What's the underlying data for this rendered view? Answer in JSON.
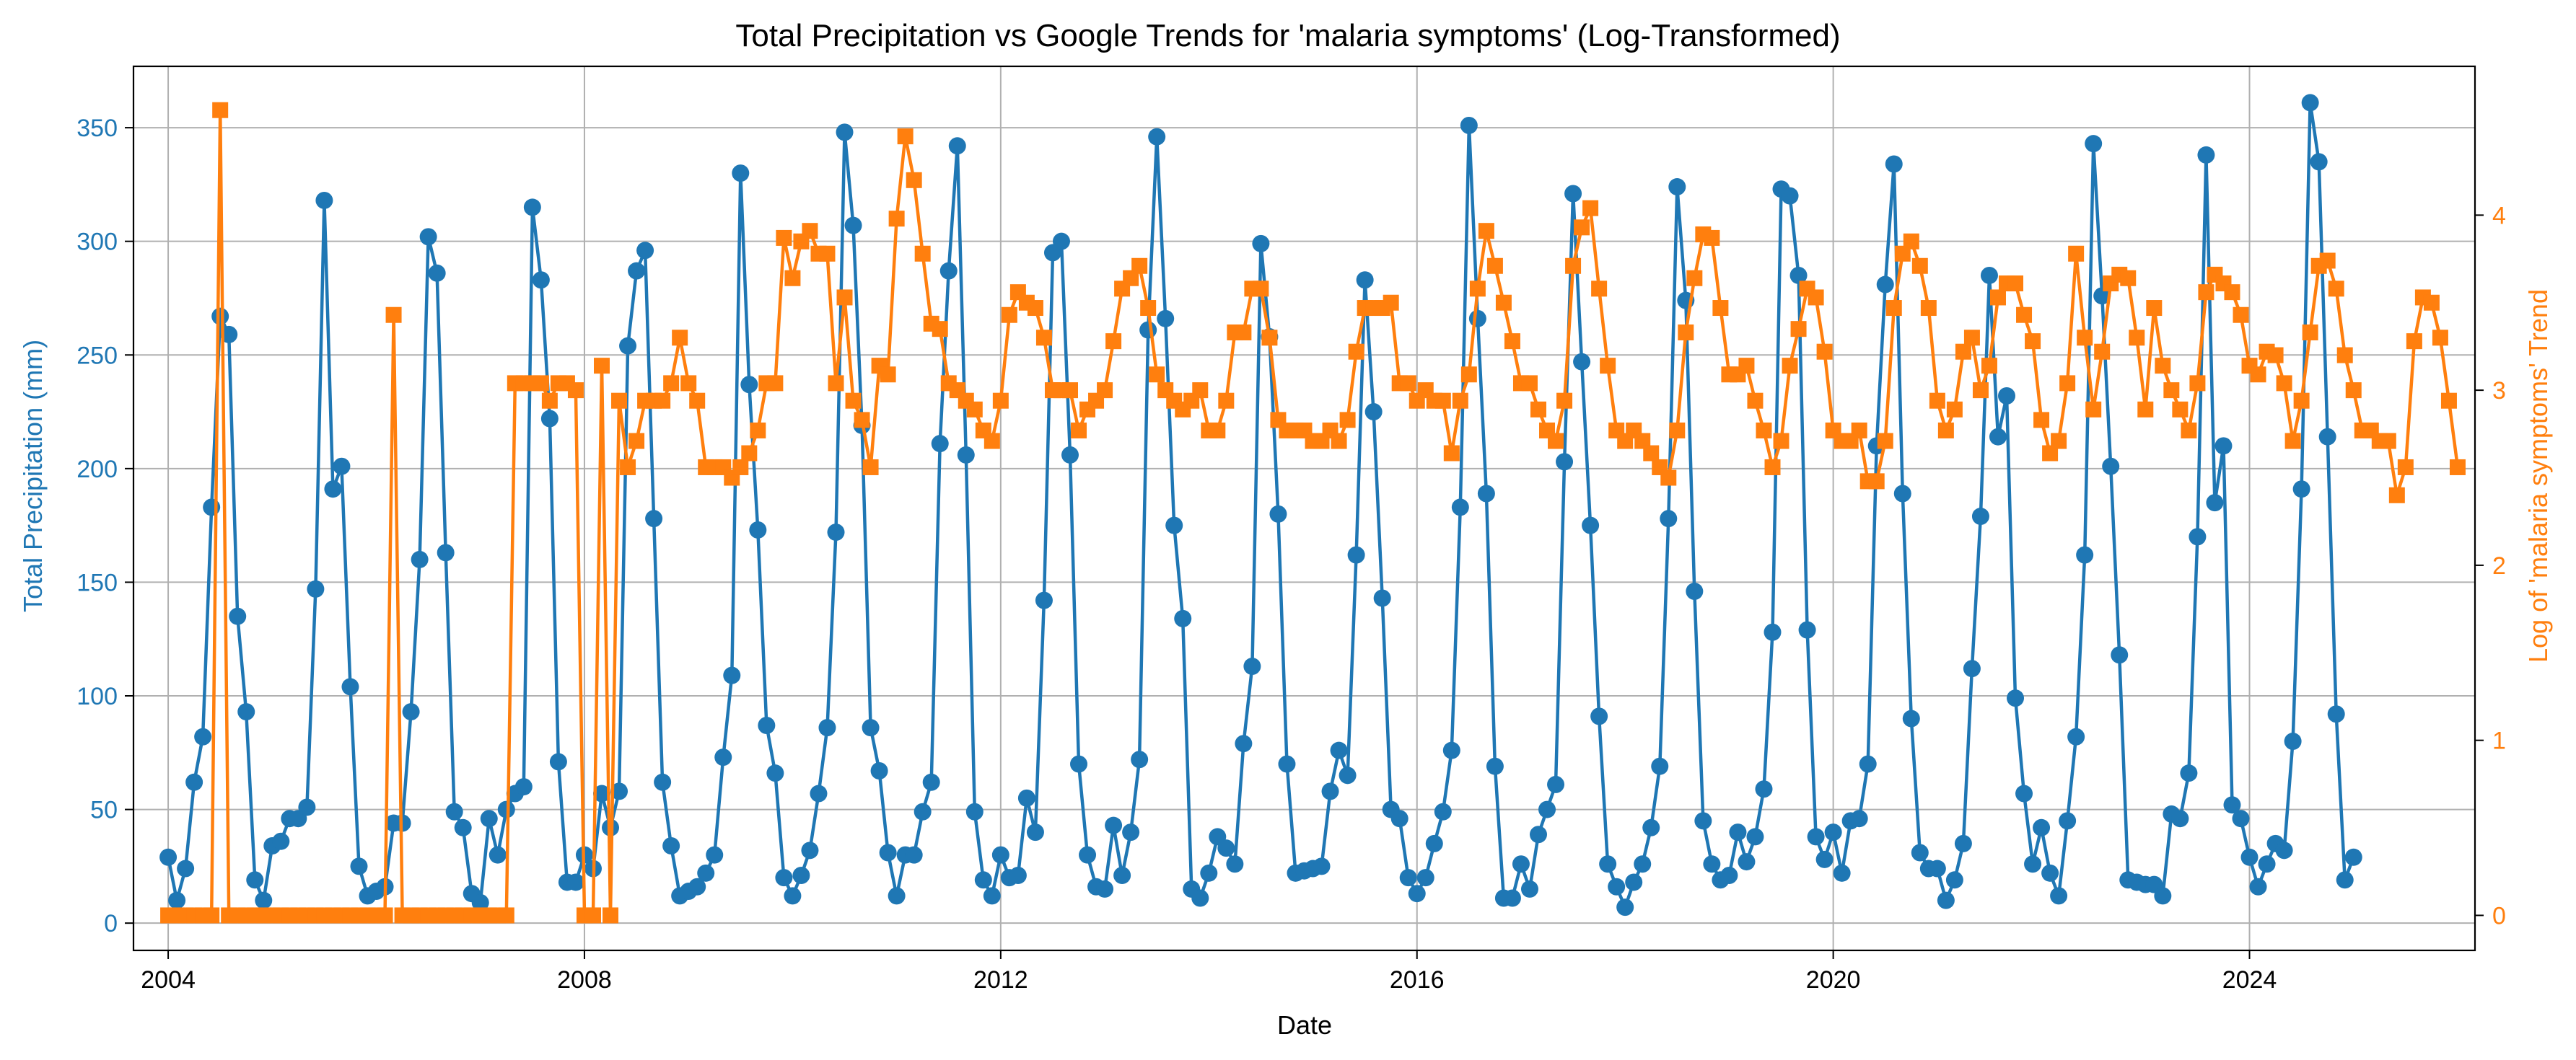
{
  "chart_data": {
    "type": "line",
    "title": "Total Precipitation vs Google Trends for 'malaria symptoms' (Log-Transformed)",
    "xlabel": "Date",
    "ylabel_left": "Total Precipitation (mm)",
    "ylabel_right": "Log of 'malaria symptoms' Trend",
    "x_range": [
      "2003-09",
      "2026-03"
    ],
    "ylim_left": [
      -12,
      377
    ],
    "ylim_right": [
      -0.2,
      4.85
    ],
    "x_ticks": [
      "2004",
      "2008",
      "2012",
      "2016",
      "2020",
      "2024"
    ],
    "y_ticks_left": [
      "0",
      "50",
      "100",
      "150",
      "200",
      "250",
      "300",
      "350"
    ],
    "y_ticks_right": [
      "0",
      "1",
      "2",
      "3",
      "4"
    ],
    "grid": true,
    "colors": {
      "precipitation": "#1f77b4",
      "trend": "#ff7f0e"
    },
    "start_month": "2004-01",
    "series": [
      {
        "axis": "left",
        "marker": "circle",
        "values": [
          29,
          10,
          24,
          62,
          82,
          183,
          267,
          259,
          135,
          93,
          19,
          10,
          34,
          36,
          46,
          46,
          51,
          147,
          318,
          191,
          201,
          104,
          25,
          12,
          14,
          16,
          44,
          44,
          93,
          160,
          302,
          286,
          163,
          49,
          42,
          13,
          9,
          46,
          30,
          50,
          57,
          60,
          315,
          283,
          222,
          71,
          18,
          18,
          30,
          24,
          57,
          42,
          58,
          254,
          287,
          296,
          178,
          62,
          34,
          12,
          14,
          16,
          22,
          30,
          73,
          109,
          330,
          237,
          173,
          87,
          66,
          20,
          12,
          21,
          32,
          57,
          86,
          172,
          348,
          307,
          219,
          86,
          67,
          31,
          12,
          30,
          30,
          49,
          62,
          211,
          287,
          342,
          206,
          49,
          19,
          12,
          30,
          20,
          21,
          55,
          40,
          142,
          295,
          300,
          206,
          70,
          30,
          16,
          15,
          43,
          21,
          40,
          72,
          261,
          346,
          266,
          175,
          134,
          15,
          11,
          22,
          38,
          33,
          26,
          79,
          113,
          299,
          258,
          180,
          70,
          22,
          23,
          24,
          25,
          58,
          76,
          65,
          162,
          283,
          225,
          143,
          50,
          46,
          20,
          13,
          20,
          35,
          49,
          76,
          183,
          351,
          266,
          189,
          69,
          11,
          11,
          26,
          15,
          39,
          50,
          61,
          203,
          321,
          247,
          175,
          91,
          26,
          16,
          7,
          18,
          26,
          42,
          69,
          178,
          324,
          274,
          146,
          45,
          26,
          19,
          21,
          40,
          27,
          38,
          59,
          128,
          323,
          320,
          285,
          129,
          38,
          28,
          40,
          22,
          45,
          46,
          70,
          210,
          281,
          334,
          189,
          90,
          31,
          24,
          24,
          10,
          19,
          35,
          112,
          179,
          285,
          214,
          232,
          99,
          57,
          26,
          42,
          22,
          12,
          45,
          82,
          162,
          343,
          276,
          201,
          118,
          19,
          18,
          17,
          17,
          12,
          48,
          46,
          66,
          170,
          338,
          185,
          210,
          52,
          46,
          29,
          16,
          26,
          35,
          32,
          80,
          191,
          361,
          335,
          214,
          92,
          19,
          29
        ]
      },
      {
        "axis": "right",
        "marker": "square",
        "values": [
          0,
          0,
          0,
          0,
          0,
          0,
          4.6,
          0,
          0,
          0,
          0,
          0,
          0,
          0,
          0,
          0,
          0,
          0,
          0,
          0,
          0,
          0,
          0,
          0,
          0,
          0,
          3.43,
          0,
          0,
          0,
          0,
          0,
          0,
          0,
          0,
          0,
          0,
          0,
          0,
          0,
          3.04,
          3.04,
          3.04,
          3.04,
          2.94,
          3.04,
          3.04,
          3.0,
          0,
          0,
          3.14,
          0,
          2.94,
          2.56,
          2.71,
          2.94,
          2.94,
          2.94,
          3.04,
          3.3,
          3.04,
          2.94,
          2.56,
          2.56,
          2.56,
          2.5,
          2.56,
          2.64,
          2.77,
          3.04,
          3.04,
          3.87,
          3.64,
          3.85,
          3.91,
          3.78,
          3.78,
          3.04,
          3.53,
          2.94,
          2.83,
          2.56,
          3.14,
          3.09,
          3.98,
          4.45,
          4.2,
          3.78,
          3.38,
          3.35,
          3.04,
          3.0,
          2.94,
          2.89,
          2.77,
          2.71,
          2.94,
          3.43,
          3.56,
          3.5,
          3.47,
          3.3,
          3.0,
          3.0,
          3.0,
          2.77,
          2.89,
          2.94,
          3.0,
          3.28,
          3.58,
          3.64,
          3.71,
          3.47,
          3.09,
          3.0,
          2.94,
          2.89,
          2.94,
          3.0,
          2.77,
          2.77,
          2.94,
          3.33,
          3.33,
          3.58,
          3.58,
          3.3,
          2.83,
          2.77,
          2.77,
          2.77,
          2.71,
          2.71,
          2.77,
          2.71,
          2.83,
          3.22,
          3.47,
          3.47,
          3.47,
          3.5,
          3.04,
          3.04,
          2.94,
          3.0,
          2.94,
          2.94,
          2.64,
          2.94,
          3.09,
          3.58,
          3.91,
          3.71,
          3.5,
          3.28,
          3.04,
          3.04,
          2.89,
          2.77,
          2.71,
          2.94,
          3.71,
          3.93,
          4.04,
          3.58,
          3.14,
          2.77,
          2.71,
          2.77,
          2.71,
          2.64,
          2.56,
          2.5,
          2.77,
          3.33,
          3.64,
          3.89,
          3.87,
          3.47,
          3.09,
          3.09,
          3.14,
          2.94,
          2.77,
          2.56,
          2.71,
          3.14,
          3.35,
          3.58,
          3.53,
          3.22,
          2.77,
          2.71,
          2.71,
          2.77,
          2.48,
          2.48,
          2.71,
          3.47,
          3.78,
          3.85,
          3.71,
          3.47,
          2.94,
          2.77,
          2.89,
          3.22,
          3.3,
          3.0,
          3.14,
          3.53,
          3.61,
          3.61,
          3.43,
          3.28,
          2.83,
          2.64,
          2.71,
          3.04,
          3.78,
          3.3,
          2.89,
          3.22,
          3.61,
          3.66,
          3.64,
          3.3,
          2.89,
          3.47,
          3.14,
          3.0,
          2.89,
          2.77,
          3.04,
          3.56,
          3.66,
          3.61,
          3.56,
          3.43,
          3.14,
          3.09,
          3.22,
          3.2,
          3.04,
          2.71,
          2.94,
          3.33,
          3.71,
          3.74,
          3.58,
          3.2,
          3.0,
          2.77,
          2.77,
          2.71,
          2.71,
          2.4,
          2.56,
          3.28,
          3.53,
          3.5,
          3.3,
          2.94,
          2.56
        ]
      }
    ]
  }
}
